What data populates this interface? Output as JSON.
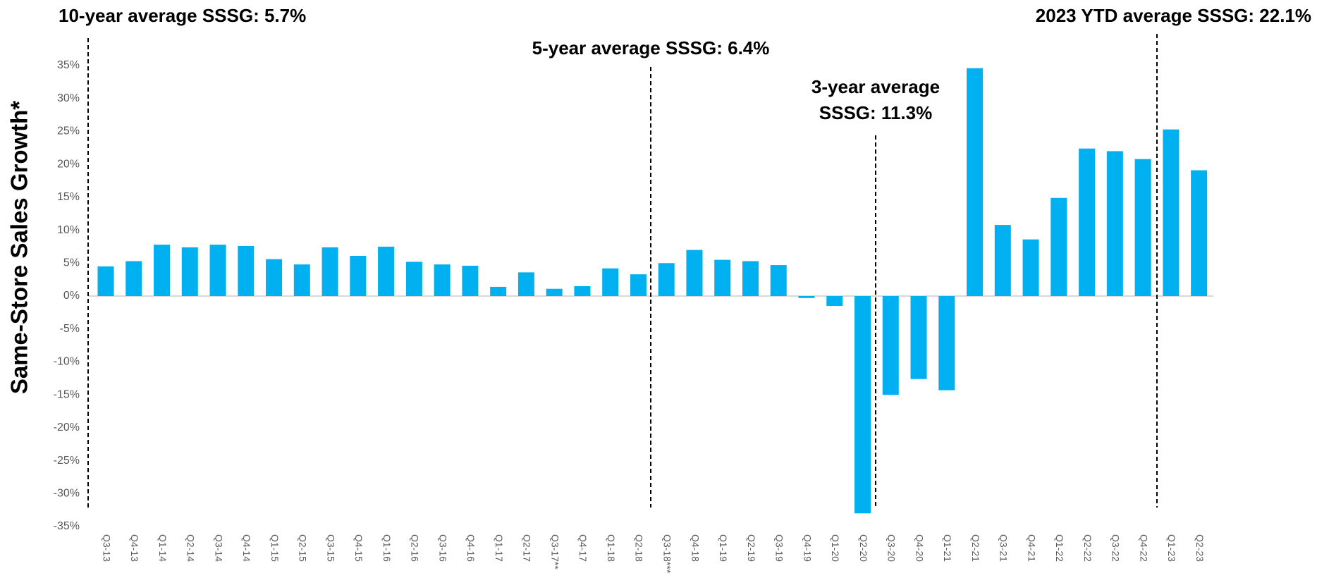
{
  "chart_data": {
    "type": "bar",
    "y_label": "Same-Store Sales Growth*",
    "color": "#00b0f0",
    "categories": [
      "Q3-13",
      "Q4-13",
      "Q1-14",
      "Q2-14",
      "Q3-14",
      "Q4-14",
      "Q1-15",
      "Q2-15",
      "Q3-15",
      "Q4-15",
      "Q1-16",
      "Q2-16",
      "Q3-16",
      "Q4-16",
      "Q1-17",
      "Q2-17",
      "Q3-17**",
      "Q4-17",
      "Q1-18",
      "Q2-18",
      "Q3-18***",
      "Q4-18",
      "Q1-19",
      "Q2-19",
      "Q3-19",
      "Q4-19",
      "Q1-20",
      "Q2-20",
      "Q3-20",
      "Q4-20",
      "Q1-21",
      "Q2-21",
      "Q3-21",
      "Q4-21",
      "Q1-22",
      "Q2-22",
      "Q3-22",
      "Q4-22",
      "Q1-23",
      "Q2-23"
    ],
    "values": [
      4.5,
      5.3,
      7.8,
      7.4,
      7.8,
      7.6,
      5.6,
      4.8,
      7.4,
      6.1,
      7.5,
      5.2,
      4.8,
      4.6,
      1.4,
      3.6,
      1.1,
      1.5,
      4.2,
      3.3,
      5.0,
      7.0,
      5.5,
      5.3,
      4.7,
      -0.3,
      -1.5,
      -33,
      -15,
      -12.6,
      -14.3,
      34.6,
      10.8,
      8.6,
      14.9,
      22.4,
      22.0,
      20.8,
      25.3,
      19.1
    ],
    "ylim": [
      -35,
      35
    ],
    "yticks": [
      {
        "value": -35,
        "label": "-35%"
      },
      {
        "value": -30,
        "label": "-30%"
      },
      {
        "value": -25,
        "label": "-25%"
      },
      {
        "value": -20,
        "label": "-20%"
      },
      {
        "value": -15,
        "label": "-15%"
      },
      {
        "value": -10,
        "label": "-10%"
      },
      {
        "value": -5,
        "label": "-5%"
      },
      {
        "value": 0,
        "label": "0%"
      },
      {
        "value": 5,
        "label": "5%"
      },
      {
        "value": 10,
        "label": "10%"
      },
      {
        "value": 15,
        "label": "15%"
      },
      {
        "value": 20,
        "label": "20%"
      },
      {
        "value": 25,
        "label": "25%"
      },
      {
        "value": 30,
        "label": "30%"
      },
      {
        "value": 35,
        "label": "35%"
      }
    ],
    "annotations": [
      [
        "10-year average SSSG: 5.7%"
      ],
      [
        "5-year average SSSG: 6.4%"
      ],
      [
        "3-year average",
        "SSSG: 11.3%"
      ],
      [
        "2023 YTD average SSSG: 22.1%"
      ]
    ]
  }
}
